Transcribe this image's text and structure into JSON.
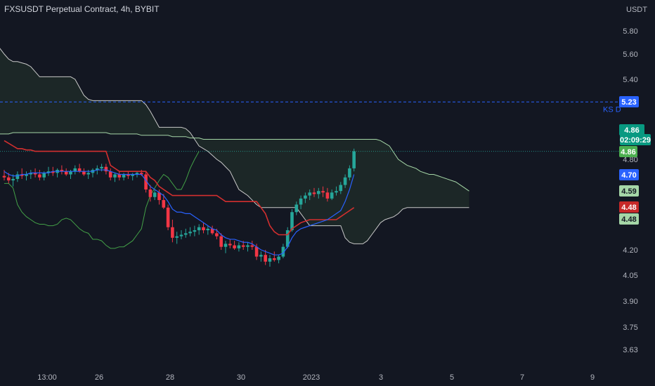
{
  "header": {
    "title": "FXSUSDT Perpetual Contract, 4h, BYBIT"
  },
  "chart_data": {
    "type": "candlestick",
    "title": "FXSUSDT Perpetual Contract, 4h, BYBIT",
    "ylabel": "USDT",
    "ylim": [
      3.55,
      5.95
    ],
    "y_ticks": [
      "5.80",
      "5.60",
      "5.40",
      "4.80",
      "4.20",
      "4.05",
      "3.90",
      "3.75",
      "3.63"
    ],
    "x_ticks": [
      "13:00",
      "26",
      "28",
      "30",
      "2023",
      "3",
      "5",
      "7",
      "9"
    ],
    "grid": false,
    "colors": {
      "background": "#131722",
      "up": "#26a69a",
      "down": "#f23645",
      "conversion": "#2962ff",
      "base": "#d32f2f",
      "lagging": "#43a047",
      "span_a": "#a5d6a7",
      "span_b": "#c8c8c8",
      "cloud": "#1f2a28",
      "ks_line": "#2962ff"
    },
    "price_tags": [
      {
        "value": "5.23",
        "bg": "#2962ff",
        "fg": "#ffffff"
      },
      {
        "value": "4.86",
        "bg": "#089981",
        "fg": "#ffffff"
      },
      {
        "value": "02:09:29",
        "bg": "#089981",
        "fg": "#ffffff"
      },
      {
        "value": "4.86",
        "bg": "#4caf50",
        "fg": "#ffffff"
      },
      {
        "value": "4.70",
        "bg": "#2962ff",
        "fg": "#ffffff"
      },
      {
        "value": "4.59",
        "bg": "#a5d6a7",
        "fg": "#131722"
      },
      {
        "value": "4.48",
        "bg": "#c62828",
        "fg": "#ffffff"
      },
      {
        "value": "4.48",
        "bg": "#a5d6a7",
        "fg": "#131722"
      }
    ],
    "ks_label": "KS D",
    "series": [
      {
        "name": "candles",
        "ohlc": [
          [
            4.69,
            4.73,
            4.66,
            4.68
          ],
          [
            4.68,
            4.71,
            4.64,
            4.66
          ],
          [
            4.66,
            4.7,
            4.62,
            4.67
          ],
          [
            4.67,
            4.72,
            4.65,
            4.7
          ],
          [
            4.7,
            4.74,
            4.67,
            4.69
          ],
          [
            4.69,
            4.72,
            4.66,
            4.7
          ],
          [
            4.7,
            4.73,
            4.67,
            4.71
          ],
          [
            4.71,
            4.74,
            4.68,
            4.7
          ],
          [
            4.7,
            4.73,
            4.66,
            4.68
          ],
          [
            4.68,
            4.72,
            4.66,
            4.71
          ],
          [
            4.71,
            4.75,
            4.69,
            4.72
          ],
          [
            4.72,
            4.75,
            4.69,
            4.71
          ],
          [
            4.71,
            4.74,
            4.68,
            4.73
          ],
          [
            4.73,
            4.76,
            4.7,
            4.72
          ],
          [
            4.72,
            4.74,
            4.69,
            4.7
          ],
          [
            4.7,
            4.73,
            4.67,
            4.72
          ],
          [
            4.72,
            4.76,
            4.7,
            4.74
          ],
          [
            4.74,
            4.77,
            4.71,
            4.72
          ],
          [
            4.72,
            4.74,
            4.69,
            4.7
          ],
          [
            4.7,
            4.73,
            4.67,
            4.71
          ],
          [
            4.71,
            4.74,
            4.68,
            4.73
          ],
          [
            4.73,
            4.76,
            4.7,
            4.74
          ],
          [
            4.74,
            4.77,
            4.72,
            4.75
          ],
          [
            4.75,
            4.77,
            4.7,
            4.72
          ],
          [
            4.72,
            4.74,
            4.66,
            4.68
          ],
          [
            4.68,
            4.71,
            4.65,
            4.7
          ],
          [
            4.7,
            4.72,
            4.66,
            4.68
          ],
          [
            4.68,
            4.71,
            4.66,
            4.7
          ],
          [
            4.7,
            4.72,
            4.67,
            4.69
          ],
          [
            4.69,
            4.71,
            4.66,
            4.7
          ],
          [
            4.7,
            4.72,
            4.68,
            4.71
          ],
          [
            4.71,
            4.73,
            4.69,
            4.7
          ],
          [
            4.7,
            4.72,
            4.58,
            4.6
          ],
          [
            4.6,
            4.63,
            4.52,
            4.55
          ],
          [
            4.55,
            4.6,
            4.53,
            4.58
          ],
          [
            4.58,
            4.6,
            4.5,
            4.53
          ],
          [
            4.53,
            4.57,
            4.47,
            4.48
          ],
          [
            4.48,
            4.5,
            4.33,
            4.35
          ],
          [
            4.35,
            4.4,
            4.25,
            4.28
          ],
          [
            4.28,
            4.32,
            4.24,
            4.29
          ],
          [
            4.29,
            4.33,
            4.27,
            4.3
          ],
          [
            4.3,
            4.34,
            4.28,
            4.31
          ],
          [
            4.31,
            4.35,
            4.29,
            4.32
          ],
          [
            4.32,
            4.36,
            4.29,
            4.33
          ],
          [
            4.33,
            4.37,
            4.3,
            4.35
          ],
          [
            4.35,
            4.38,
            4.31,
            4.33
          ],
          [
            4.33,
            4.36,
            4.3,
            4.34
          ],
          [
            4.34,
            4.36,
            4.3,
            4.31
          ],
          [
            4.31,
            4.34,
            4.27,
            4.29
          ],
          [
            4.29,
            4.31,
            4.2,
            4.22
          ],
          [
            4.22,
            4.26,
            4.18,
            4.24
          ],
          [
            4.24,
            4.27,
            4.21,
            4.23
          ],
          [
            4.23,
            4.26,
            4.2,
            4.21
          ],
          [
            4.21,
            4.25,
            4.19,
            4.23
          ],
          [
            4.23,
            4.26,
            4.2,
            4.22
          ],
          [
            4.22,
            4.25,
            4.19,
            4.23
          ],
          [
            4.23,
            4.26,
            4.2,
            4.22
          ],
          [
            4.22,
            4.24,
            4.14,
            4.16
          ],
          [
            4.16,
            4.19,
            4.13,
            4.17
          ],
          [
            4.17,
            4.2,
            4.11,
            4.13
          ],
          [
            4.13,
            4.17,
            4.1,
            4.15
          ],
          [
            4.15,
            4.19,
            4.13,
            4.14
          ],
          [
            4.14,
            4.17,
            4.12,
            4.16
          ],
          [
            4.16,
            4.24,
            4.15,
            4.22
          ],
          [
            4.22,
            4.35,
            4.21,
            4.33
          ],
          [
            4.33,
            4.47,
            4.32,
            4.45
          ],
          [
            4.45,
            4.52,
            4.43,
            4.5
          ],
          [
            4.5,
            4.56,
            4.47,
            4.54
          ],
          [
            4.54,
            4.58,
            4.51,
            4.56
          ],
          [
            4.56,
            4.6,
            4.53,
            4.58
          ],
          [
            4.58,
            4.61,
            4.55,
            4.57
          ],
          [
            4.57,
            4.61,
            4.54,
            4.59
          ],
          [
            4.59,
            4.62,
            4.55,
            4.58
          ],
          [
            4.58,
            4.61,
            4.52,
            4.54
          ],
          [
            4.54,
            4.6,
            4.53,
            4.58
          ],
          [
            4.58,
            4.62,
            4.56,
            4.59
          ],
          [
            4.59,
            4.65,
            4.57,
            4.63
          ],
          [
            4.63,
            4.7,
            4.61,
            4.68
          ],
          [
            4.68,
            4.76,
            4.66,
            4.74
          ],
          [
            4.74,
            4.88,
            4.72,
            4.86
          ]
        ]
      },
      {
        "name": "conversion",
        "values": [
          4.72,
          4.7,
          4.69,
          4.69,
          4.7,
          4.7,
          4.71,
          4.71,
          4.71,
          4.71,
          4.71,
          4.72,
          4.72,
          4.72,
          4.72,
          4.72,
          4.72,
          4.72,
          4.72,
          4.72,
          4.72,
          4.73,
          4.73,
          4.73,
          4.72,
          4.71,
          4.7,
          4.7,
          4.7,
          4.7,
          4.7,
          4.7,
          4.66,
          4.62,
          4.6,
          4.58,
          4.56,
          4.52,
          4.47,
          4.45,
          4.45,
          4.44,
          4.44,
          4.42,
          4.4,
          4.38,
          4.36,
          4.34,
          4.33,
          4.3,
          4.28,
          4.27,
          4.27,
          4.26,
          4.25,
          4.25,
          4.24,
          4.22,
          4.2,
          4.19,
          4.18,
          4.17,
          4.17,
          4.18,
          4.22,
          4.28,
          4.32,
          4.34,
          4.35,
          4.36,
          4.37,
          4.38,
          4.39,
          4.4,
          4.42,
          4.44,
          4.46,
          4.52,
          4.6,
          4.7
        ]
      },
      {
        "name": "base",
        "values": [
          4.94,
          4.92,
          4.9,
          4.88,
          4.88,
          4.87,
          4.87,
          4.86,
          4.86,
          4.86,
          4.86,
          4.86,
          4.86,
          4.86,
          4.86,
          4.86,
          4.86,
          4.86,
          4.86,
          4.86,
          4.86,
          4.86,
          4.86,
          4.86,
          4.76,
          4.74,
          4.72,
          4.72,
          4.72,
          4.72,
          4.72,
          4.72,
          4.72,
          4.68,
          4.66,
          4.62,
          4.6,
          4.58,
          4.56,
          4.56,
          4.56,
          4.56,
          4.56,
          4.56,
          4.56,
          4.56,
          4.56,
          4.56,
          4.56,
          4.54,
          4.52,
          4.52,
          4.52,
          4.52,
          4.52,
          4.52,
          4.52,
          4.52,
          4.48,
          4.44,
          4.36,
          4.32,
          4.3,
          4.3,
          4.3,
          4.34,
          4.36,
          4.38,
          4.39,
          4.4,
          4.4,
          4.4,
          4.4,
          4.4,
          4.4,
          4.4,
          4.42,
          4.44,
          4.46,
          4.48
        ]
      },
      {
        "name": "lagging",
        "values": [
          4.64,
          4.64,
          4.61,
          4.5,
          4.45,
          4.42,
          4.4,
          4.38,
          4.37,
          4.37,
          4.36,
          4.36,
          4.37,
          4.4,
          4.41,
          4.4,
          4.37,
          4.34,
          4.32,
          4.31,
          4.27,
          4.27,
          4.26,
          4.23,
          4.21,
          4.21,
          4.22,
          4.22,
          4.24,
          4.26,
          4.3,
          4.34,
          4.48,
          4.56,
          4.61,
          4.66,
          4.7,
          4.68,
          4.64,
          4.6,
          4.6,
          4.66,
          4.74,
          4.8,
          4.86
        ]
      },
      {
        "name": "span_a",
        "values": [
          4.99,
          4.99,
          4.99,
          4.99,
          4.99,
          5.0,
          5.0,
          5.0,
          5.0,
          5.0,
          5.0,
          5.0,
          5.0,
          5.0,
          5.0,
          5.0,
          5.0,
          5.0,
          5.0,
          5.0,
          5.0,
          5.0,
          5.0,
          5.0,
          5.0,
          5.0,
          5.0,
          4.99,
          4.99,
          4.99,
          4.99,
          4.99,
          4.99,
          4.99,
          4.98,
          4.98,
          4.98,
          4.98,
          4.98,
          4.98,
          4.98,
          4.97,
          4.97,
          4.97,
          4.97,
          4.96,
          4.96,
          4.96,
          4.95,
          4.95,
          4.95,
          4.95,
          4.95,
          4.95,
          4.95,
          4.95,
          4.95,
          4.95,
          4.95,
          4.95,
          4.95,
          4.95,
          4.95,
          4.95,
          4.95,
          4.95,
          4.95,
          4.95,
          4.95,
          4.95,
          4.95,
          4.95,
          4.95,
          4.95,
          4.95,
          4.95,
          4.95,
          4.95,
          4.95,
          4.95,
          4.95,
          4.95,
          4.95,
          4.95,
          4.95,
          4.95,
          4.95,
          4.95,
          4.94,
          4.92,
          4.9,
          4.85,
          4.8,
          4.78,
          4.76,
          4.75,
          4.74,
          4.72,
          4.71,
          4.7,
          4.7,
          4.69,
          4.68,
          4.67,
          4.66,
          4.65,
          4.63,
          4.61,
          4.59
        ]
      },
      {
        "name": "span_b",
        "values": [
          5.68,
          5.68,
          5.65,
          5.6,
          5.56,
          5.54,
          5.54,
          5.53,
          5.52,
          5.5,
          5.46,
          5.42,
          5.42,
          5.42,
          5.42,
          5.42,
          5.42,
          5.42,
          5.42,
          5.4,
          5.34,
          5.28,
          5.25,
          5.24,
          5.24,
          5.24,
          5.24,
          5.24,
          5.24,
          5.24,
          5.24,
          5.24,
          5.24,
          5.24,
          5.24,
          5.21,
          5.16,
          5.1,
          5.04,
          5.04,
          5.04,
          5.04,
          5.04,
          5.04,
          5.03,
          5.0,
          4.95,
          4.9,
          4.88,
          4.86,
          4.83,
          4.8,
          4.78,
          4.75,
          4.72,
          4.66,
          4.6,
          4.58,
          4.56,
          4.53,
          4.5,
          4.48,
          4.48,
          4.48,
          4.48,
          4.48,
          4.48,
          4.48,
          4.48,
          4.48,
          4.44,
          4.4,
          4.36,
          4.36,
          4.36,
          4.36,
          4.36,
          4.36,
          4.36,
          4.36,
          4.28,
          4.25,
          4.24,
          4.24,
          4.24,
          4.26,
          4.3,
          4.34,
          4.38,
          4.4,
          4.41,
          4.42,
          4.44,
          4.47,
          4.48,
          4.48,
          4.48,
          4.48,
          4.48,
          4.48,
          4.48,
          4.48,
          4.48,
          4.48,
          4.48,
          4.48,
          4.48,
          4.48,
          4.48
        ]
      }
    ]
  }
}
